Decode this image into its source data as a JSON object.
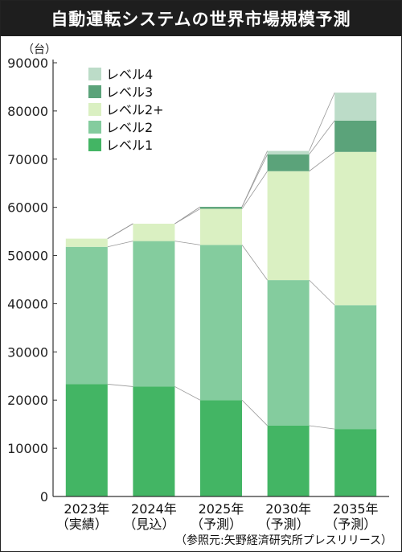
{
  "header": {
    "title": "自動運転システムの世界市場規模予測"
  },
  "source": "（参照元:矢野経済研究所プレスリリース）",
  "colors": {
    "level1": "#43b564",
    "level2": "#84cc9e",
    "level2plus": "#daf0c2",
    "level3": "#5ba37a",
    "level4": "#bcdcc8",
    "connector": "#999999"
  },
  "chart_data": {
    "type": "bar",
    "stacked": true,
    "unit": "（台）",
    "ylim": [
      0,
      90000
    ],
    "yticks": [
      "0",
      "10000",
      "20000",
      "30000",
      "40000",
      "50000",
      "60000",
      "70000",
      "80000",
      "90000"
    ],
    "grid": false,
    "legend_position": "top-left",
    "categories": [
      {
        "year": "2023年",
        "note": "（実績）"
      },
      {
        "year": "2024年",
        "note": "（見込）"
      },
      {
        "year": "2025年",
        "note": "（予測）"
      },
      {
        "year": "2030年",
        "note": "（予測）"
      },
      {
        "year": "2035年",
        "note": "（予測）"
      }
    ],
    "series": [
      {
        "name": "レベル1",
        "key": "level1",
        "values": [
          23300,
          22800,
          20000,
          14700,
          14000
        ]
      },
      {
        "name": "レベル2",
        "key": "level2",
        "values": [
          28500,
          30200,
          32200,
          30200,
          25700
        ]
      },
      {
        "name": "レベル2+",
        "key": "level2plus",
        "values": [
          1700,
          3600,
          7500,
          22600,
          31800
        ]
      },
      {
        "name": "レベル3",
        "key": "level3",
        "values": [
          0,
          0,
          400,
          3500,
          6500
        ]
      },
      {
        "name": "レベル4",
        "key": "level4",
        "values": [
          0,
          0,
          0,
          700,
          5800
        ]
      }
    ],
    "legend_order": [
      "level4",
      "level3",
      "level2plus",
      "level2",
      "level1"
    ]
  }
}
